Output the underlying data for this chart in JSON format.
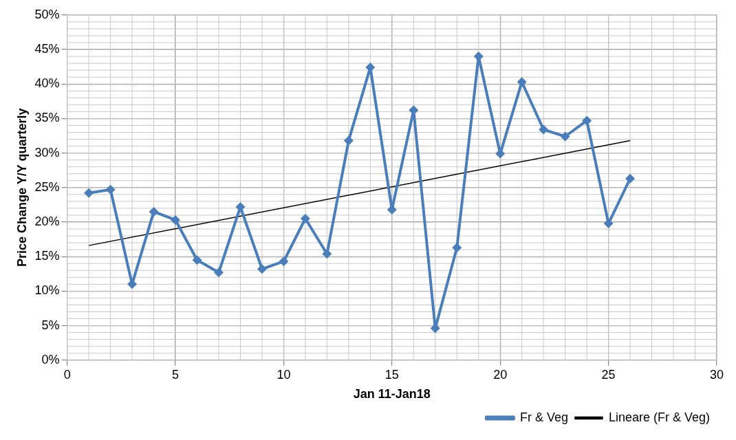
{
  "chart_data": {
    "type": "line",
    "xlabel": "Jan 11-Jan18",
    "ylabel": "Price Change Y/Y quarterly",
    "xlim": [
      0,
      30
    ],
    "xticks": [
      0,
      5,
      10,
      15,
      20,
      25,
      30
    ],
    "ylim": [
      0,
      50
    ],
    "yticks": [
      {
        "value": 0,
        "label": "0%"
      },
      {
        "value": 5,
        "label": "5%"
      },
      {
        "value": 10,
        "label": "10%"
      },
      {
        "value": 15,
        "label": "15%"
      },
      {
        "value": 20,
        "label": "20%"
      },
      {
        "value": 25,
        "label": "25%"
      },
      {
        "value": 30,
        "label": "30%"
      },
      {
        "value": 35,
        "label": "35%"
      },
      {
        "value": 40,
        "label": "40%"
      },
      {
        "value": 45,
        "label": "45%"
      },
      {
        "value": 50,
        "label": "50%"
      }
    ],
    "grid": true,
    "legend": "bottom right",
    "series": [
      {
        "name": "Fr & Veg",
        "color": "#4a7ebb",
        "marker": "diamond",
        "x": [
          1,
          2,
          3,
          4,
          5,
          6,
          7,
          8,
          9,
          10,
          11,
          12,
          13,
          14,
          15,
          16,
          17,
          18,
          19,
          20,
          21,
          22,
          23,
          24,
          25,
          26
        ],
        "values": [
          24.2,
          24.7,
          11.0,
          21.5,
          20.3,
          14.5,
          12.7,
          22.2,
          13.2,
          14.3,
          20.5,
          15.4,
          31.8,
          42.4,
          21.8,
          36.2,
          4.6,
          16.3,
          44.0,
          29.9,
          40.3,
          33.4,
          32.4,
          34.7,
          19.8,
          26.3
        ]
      },
      {
        "name": "Lineare (Fr & Veg)",
        "type": "line",
        "color": "#000000",
        "marker": "none",
        "x": [
          1,
          26
        ],
        "values": [
          16.6,
          31.8
        ]
      }
    ]
  }
}
